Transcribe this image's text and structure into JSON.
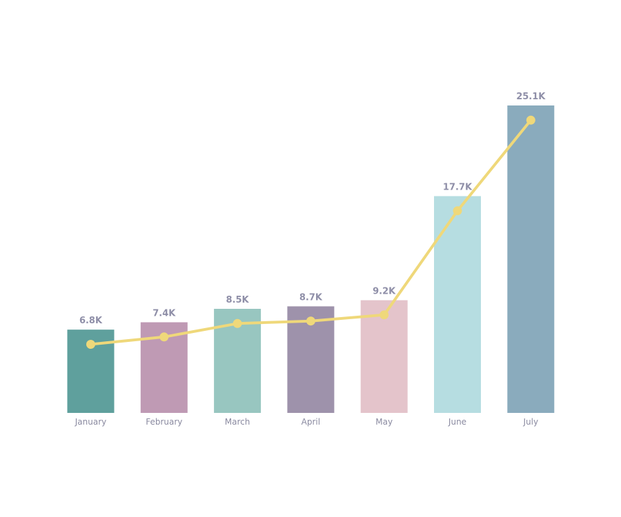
{
  "chart_data": {
    "type": "bar",
    "categories": [
      "January",
      "February",
      "March",
      "April",
      "May",
      "June",
      "July"
    ],
    "series": [
      {
        "type": "bar",
        "values": [
          6.8,
          7.4,
          8.5,
          8.7,
          9.2,
          17.7,
          25.1
        ],
        "labels": [
          "6.8K",
          "7.4K",
          "8.5K",
          "8.7K",
          "9.2K",
          "17.7K",
          "25.1K"
        ],
        "colors": [
          "#5fa09d",
          "#bf9ab4",
          "#98c6c0",
          "#9e92ab",
          "#e4c4cb",
          "#b6dde1",
          "#8aabbd"
        ]
      },
      {
        "type": "line",
        "values": [
          5.6,
          6.2,
          7.3,
          7.5,
          8.0,
          16.5,
          23.9
        ],
        "color": "#efd87a"
      }
    ],
    "ylim": [
      0,
      25.1
    ],
    "grid": false,
    "legend": "none",
    "title": "",
    "xlabel": "",
    "ylabel": ""
  }
}
